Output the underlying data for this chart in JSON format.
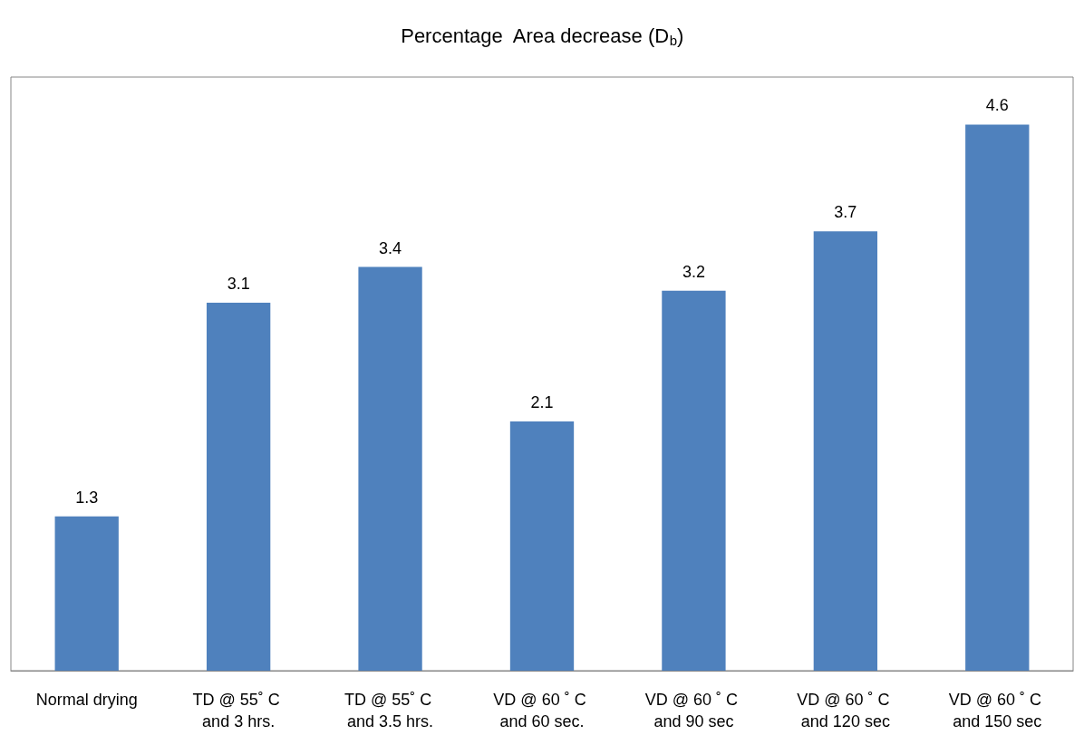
{
  "chart_data": {
    "type": "bar",
    "title": "Percentage  Area decrease (D$_{b}$)",
    "categories": [
      "Normal drying",
      "TD @ 55˚ C and 3 hrs.",
      "TD @ 55˚ C and 3.5 hrs.",
      "VD @ 60 ˚ C and 60 sec.",
      "VD @ 60 ˚ C and 90 sec",
      "VD @ 60 ˚ C and 120 sec",
      "VD @ 60 ˚ C and 150 sec"
    ],
    "values": [
      1.3,
      3.1,
      3.4,
      2.1,
      3.2,
      3.7,
      4.6
    ],
    "color": "#4f81bd",
    "data_labels": true
  }
}
